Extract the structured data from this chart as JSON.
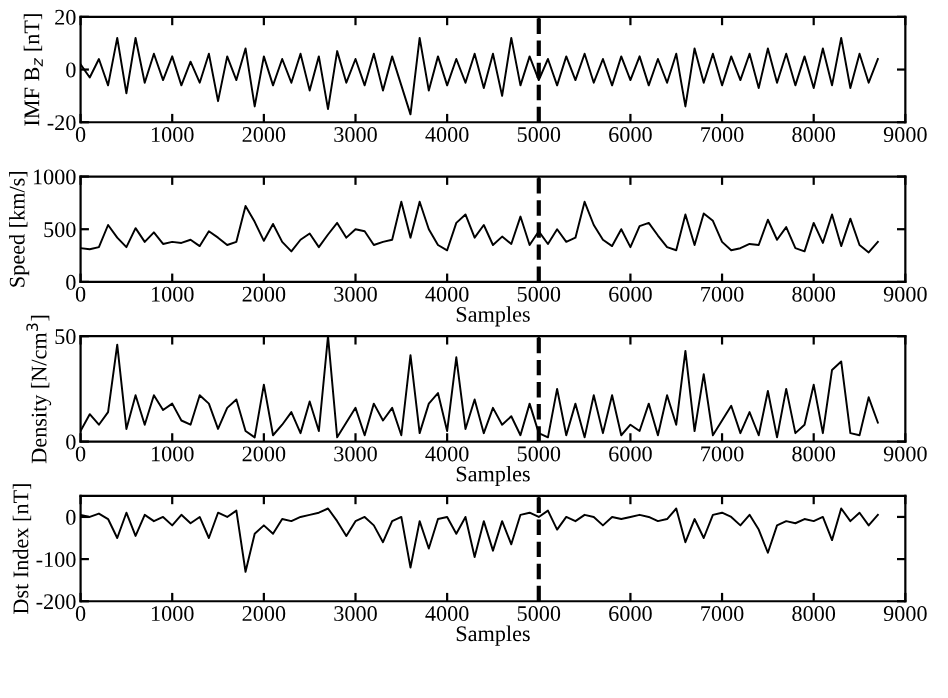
{
  "chart_data": [
    {
      "type": "line",
      "ylabel": "IMF B$_{z}$ [nT]",
      "xlim": [
        0,
        9000
      ],
      "xticks": [
        0,
        1000,
        2000,
        3000,
        4000,
        5000,
        6000,
        7000,
        8000,
        9000
      ],
      "ylim": [
        -20,
        20
      ],
      "yticks": [
        -20,
        0,
        20
      ],
      "grid": false,
      "legend": false,
      "x": [
        0,
        100,
        200,
        300,
        400,
        500,
        600,
        700,
        800,
        900,
        1000,
        1100,
        1200,
        1300,
        1400,
        1500,
        1600,
        1700,
        1800,
        1900,
        2000,
        2100,
        2200,
        2300,
        2400,
        2500,
        2600,
        2700,
        2800,
        2900,
        3000,
        3100,
        3200,
        3300,
        3400,
        3500,
        3600,
        3700,
        3800,
        3900,
        4000,
        4100,
        4200,
        4300,
        4400,
        4500,
        4600,
        4700,
        4800,
        4900,
        5000,
        5100,
        5200,
        5300,
        5400,
        5500,
        5600,
        5700,
        5800,
        5900,
        6000,
        6100,
        6200,
        6300,
        6400,
        6500,
        6600,
        6700,
        6800,
        6900,
        7000,
        7100,
        7200,
        7300,
        7400,
        7500,
        7600,
        7700,
        7800,
        7900,
        8000,
        8100,
        8200,
        8300,
        8400,
        8500,
        8600,
        8700
      ],
      "series": [
        {
          "color": "#000000",
          "values": [
            2,
            -3,
            4,
            -6,
            12,
            -9,
            12,
            -5,
            6,
            -4,
            5,
            -6,
            3,
            -5,
            6,
            -12,
            5,
            -4,
            8,
            -14,
            5,
            -6,
            4,
            -5,
            6,
            -8,
            5,
            -15,
            7,
            -5,
            4,
            -6,
            6,
            -8,
            5,
            -6,
            -17,
            12,
            -8,
            5,
            -6,
            4,
            -5,
            6,
            -7,
            6,
            -10,
            12,
            -6,
            5,
            -4,
            4,
            -6,
            5,
            -4,
            6,
            -5,
            4,
            -6,
            5,
            -4,
            5,
            -6,
            4,
            -5,
            6,
            -14,
            8,
            -5,
            6,
            -6,
            5,
            -4,
            6,
            -7,
            8,
            -5,
            6,
            -6,
            5,
            -7,
            8,
            -6,
            12,
            -7,
            6,
            -5,
            4
          ]
        }
      ],
      "ref_lines": [
        {
          "axis": "x",
          "value": 5000,
          "color": "#000000",
          "line_style": "dashed"
        }
      ]
    },
    {
      "type": "line",
      "xlabel": "Samples",
      "ylabel": "Speed [km/s]",
      "xlim": [
        0,
        9000
      ],
      "xticks": [
        0,
        1000,
        2000,
        3000,
        4000,
        5000,
        6000,
        7000,
        8000,
        9000
      ],
      "ylim": [
        0,
        1000
      ],
      "yticks": [
        0,
        500,
        1000
      ],
      "grid": false,
      "legend": false,
      "x": [
        0,
        100,
        200,
        300,
        400,
        500,
        600,
        700,
        800,
        900,
        1000,
        1100,
        1200,
        1300,
        1400,
        1500,
        1600,
        1700,
        1800,
        1900,
        2000,
        2100,
        2200,
        2300,
        2400,
        2500,
        2600,
        2700,
        2800,
        2900,
        3000,
        3100,
        3200,
        3300,
        3400,
        3500,
        3600,
        3700,
        3800,
        3900,
        4000,
        4100,
        4200,
        4300,
        4400,
        4500,
        4600,
        4700,
        4800,
        4900,
        5000,
        5100,
        5200,
        5300,
        5400,
        5500,
        5600,
        5700,
        5800,
        5900,
        6000,
        6100,
        6200,
        6300,
        6400,
        6500,
        6600,
        6700,
        6800,
        6900,
        7000,
        7100,
        7200,
        7300,
        7400,
        7500,
        7600,
        7700,
        7800,
        7900,
        8000,
        8100,
        8200,
        8300,
        8400,
        8500,
        8600,
        8700
      ],
      "series": [
        {
          "color": "#000000",
          "values": [
            320,
            310,
            330,
            540,
            420,
            330,
            510,
            380,
            470,
            360,
            380,
            370,
            400,
            340,
            480,
            420,
            350,
            380,
            720,
            570,
            390,
            550,
            380,
            290,
            400,
            460,
            330,
            450,
            560,
            420,
            500,
            480,
            350,
            380,
            400,
            760,
            420,
            760,
            500,
            350,
            300,
            560,
            640,
            420,
            540,
            350,
            430,
            360,
            620,
            350,
            480,
            360,
            500,
            380,
            420,
            760,
            540,
            400,
            340,
            500,
            330,
            530,
            560,
            440,
            330,
            300,
            640,
            350,
            650,
            580,
            380,
            300,
            320,
            360,
            350,
            590,
            400,
            520,
            320,
            290,
            560,
            370,
            640,
            340,
            600,
            350,
            280,
            380
          ]
        }
      ],
      "ref_lines": [
        {
          "axis": "x",
          "value": 5000,
          "color": "#000000",
          "line_style": "dashed"
        }
      ]
    },
    {
      "type": "line",
      "xlabel": "Samples",
      "ylabel": "Density [N/cm$^{3}$]",
      "xlim": [
        0,
        9000
      ],
      "xticks": [
        0,
        1000,
        2000,
        3000,
        4000,
        5000,
        6000,
        7000,
        8000,
        9000
      ],
      "ylim": [
        0,
        50
      ],
      "yticks": [
        0,
        50
      ],
      "grid": false,
      "legend": false,
      "x": [
        0,
        100,
        200,
        300,
        400,
        500,
        600,
        700,
        800,
        900,
        1000,
        1100,
        1200,
        1300,
        1400,
        1500,
        1600,
        1700,
        1800,
        1900,
        2000,
        2100,
        2200,
        2300,
        2400,
        2500,
        2600,
        2700,
        2800,
        2900,
        3000,
        3100,
        3200,
        3300,
        3400,
        3500,
        3600,
        3700,
        3800,
        3900,
        4000,
        4100,
        4200,
        4300,
        4400,
        4500,
        4600,
        4700,
        4800,
        4900,
        5000,
        5100,
        5200,
        5300,
        5400,
        5500,
        5600,
        5700,
        5800,
        5900,
        6000,
        6100,
        6200,
        6300,
        6400,
        6500,
        6600,
        6700,
        6800,
        6900,
        7000,
        7100,
        7200,
        7300,
        7400,
        7500,
        7600,
        7700,
        7800,
        7900,
        8000,
        8100,
        8200,
        8300,
        8400,
        8500,
        8600,
        8700
      ],
      "series": [
        {
          "color": "#000000",
          "values": [
            5,
            13,
            8,
            14,
            46,
            6,
            22,
            8,
            22,
            15,
            18,
            10,
            8,
            22,
            18,
            6,
            16,
            20,
            5,
            2,
            27,
            3,
            8,
            14,
            4,
            19,
            5,
            50,
            2,
            9,
            16,
            3,
            18,
            10,
            16,
            3,
            41,
            4,
            18,
            23,
            5,
            40,
            6,
            20,
            4,
            16,
            8,
            12,
            3,
            18,
            4,
            2,
            25,
            3,
            18,
            2,
            22,
            4,
            22,
            3,
            8,
            5,
            18,
            3,
            22,
            8,
            43,
            5,
            32,
            3,
            10,
            17,
            4,
            14,
            3,
            24,
            2,
            25,
            4,
            8,
            27,
            4,
            34,
            38,
            4,
            3,
            21,
            9
          ]
        }
      ],
      "ref_lines": [
        {
          "axis": "x",
          "value": 5000,
          "color": "#000000",
          "line_style": "dashed"
        }
      ]
    },
    {
      "type": "line",
      "xlabel": "Samples",
      "ylabel": "Dst Index [nT]",
      "xlim": [
        0,
        9000
      ],
      "xticks": [
        0,
        1000,
        2000,
        3000,
        4000,
        5000,
        6000,
        7000,
        8000,
        9000
      ],
      "ylim": [
        -200,
        50
      ],
      "yticks": [
        -200,
        -100,
        0
      ],
      "grid": false,
      "legend": false,
      "x": [
        0,
        100,
        200,
        300,
        400,
        500,
        600,
        700,
        800,
        900,
        1000,
        1100,
        1200,
        1300,
        1400,
        1500,
        1600,
        1700,
        1800,
        1900,
        2000,
        2100,
        2200,
        2300,
        2400,
        2500,
        2600,
        2700,
        2800,
        2900,
        3000,
        3100,
        3200,
        3300,
        3400,
        3500,
        3600,
        3700,
        3800,
        3900,
        4000,
        4100,
        4200,
        4300,
        4400,
        4500,
        4600,
        4700,
        4800,
        4900,
        5000,
        5100,
        5200,
        5300,
        5400,
        5500,
        5600,
        5700,
        5800,
        5900,
        6000,
        6100,
        6200,
        6300,
        6400,
        6500,
        6600,
        6700,
        6800,
        6900,
        7000,
        7100,
        7200,
        7300,
        7400,
        7500,
        7600,
        7700,
        7800,
        7900,
        8000,
        8100,
        8200,
        8300,
        8400,
        8500,
        8600,
        8700
      ],
      "series": [
        {
          "color": "#000000",
          "values": [
            5,
            0,
            8,
            -5,
            -50,
            10,
            -45,
            5,
            -10,
            0,
            -20,
            5,
            -15,
            0,
            -50,
            10,
            0,
            15,
            -130,
            -40,
            -20,
            -40,
            -5,
            -10,
            0,
            5,
            10,
            20,
            -10,
            -45,
            -10,
            0,
            -20,
            -60,
            -10,
            0,
            -120,
            -10,
            -75,
            -5,
            0,
            -40,
            0,
            -95,
            -10,
            -80,
            -10,
            -65,
            5,
            10,
            0,
            15,
            -30,
            0,
            -10,
            5,
            0,
            -20,
            0,
            -5,
            0,
            5,
            0,
            -10,
            -5,
            20,
            -60,
            -5,
            -50,
            5,
            10,
            0,
            -20,
            5,
            -30,
            -85,
            -20,
            -10,
            -15,
            -5,
            -10,
            0,
            -55,
            20,
            -10,
            10,
            -20,
            5
          ]
        }
      ],
      "ref_lines": [
        {
          "axis": "x",
          "value": 5000,
          "color": "#000000",
          "line_style": "dashed"
        }
      ]
    }
  ]
}
